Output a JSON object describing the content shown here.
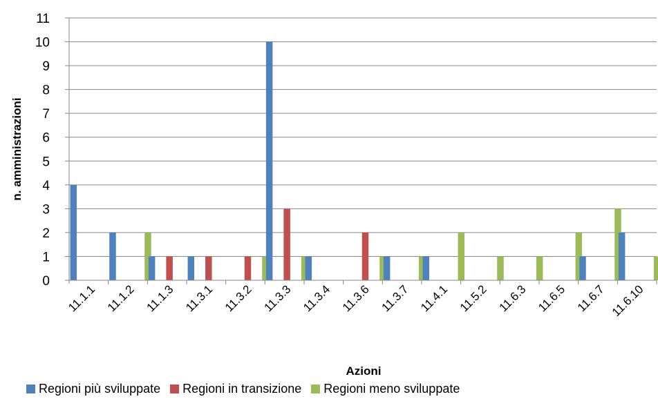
{
  "chart_data": {
    "type": "bar",
    "xlabel": "Azioni",
    "ylabel": "n. amministrazioni",
    "ylim": [
      0,
      11
    ],
    "yticks": [
      0,
      1,
      2,
      3,
      4,
      5,
      6,
      7,
      8,
      9,
      10,
      11
    ],
    "grid": true,
    "legend_position": "bottom",
    "categories": [
      "11.1.1",
      "11.1.2",
      "11.1.3",
      "11.3.1",
      "11.3.2",
      "11.3.3",
      "11.3.4",
      "11.3.6",
      "11.3.7",
      "11.4.1",
      "11.5.2",
      "11.6.3",
      "11.6.5",
      "11.6.7",
      "11.6.10"
    ],
    "series": [
      {
        "name": "Regioni più sviluppate",
        "color": "#4F81BD",
        "values": [
          4,
          2,
          1,
          1,
          0,
          10,
          1,
          0,
          1,
          1,
          0,
          0,
          0,
          1,
          2
        ]
      },
      {
        "name": "Regioni in transizione",
        "color": "#C0504D",
        "values": [
          0,
          0,
          1,
          1,
          1,
          3,
          0,
          2,
          0,
          0,
          0,
          0,
          0,
          0,
          0
        ]
      },
      {
        "name": "Regioni meno sviluppate",
        "color": "#9BBB59",
        "values": [
          0,
          2,
          0,
          0,
          1,
          1,
          0,
          1,
          1,
          2,
          1,
          1,
          2,
          3,
          1
        ]
      }
    ]
  }
}
